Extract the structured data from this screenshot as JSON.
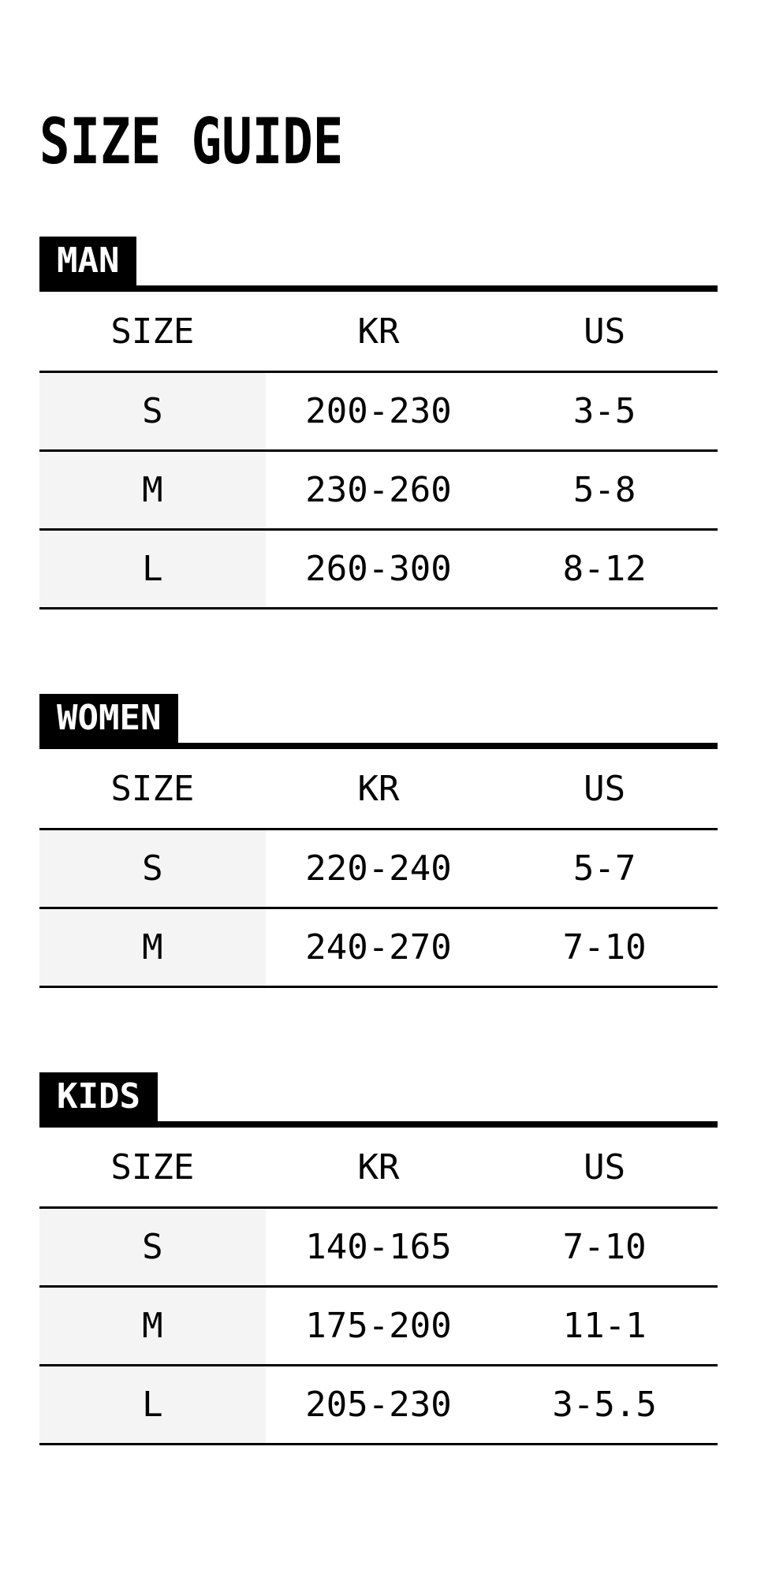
{
  "page": {
    "title": "SIZE GUIDE"
  },
  "colors": {
    "background": "#ffffff",
    "text": "#000000",
    "tab_background": "#000000",
    "tab_text": "#ffffff",
    "size_column_shade": "#f4f4f4",
    "line": "#000000"
  },
  "sections": [
    {
      "label": "MAN",
      "columns": [
        "SIZE",
        "KR",
        "US"
      ],
      "rows": [
        [
          "S",
          "200-230",
          "3-5"
        ],
        [
          "M",
          "230-260",
          "5-8"
        ],
        [
          "L",
          "260-300",
          "8-12"
        ]
      ]
    },
    {
      "label": "WOMEN",
      "columns": [
        "SIZE",
        "KR",
        "US"
      ],
      "rows": [
        [
          "S",
          "220-240",
          "5-7"
        ],
        [
          "M",
          "240-270",
          "7-10"
        ]
      ]
    },
    {
      "label": "KIDS",
      "columns": [
        "SIZE",
        "KR",
        "US"
      ],
      "rows": [
        [
          "S",
          "140-165",
          "7-10"
        ],
        [
          "M",
          "175-200",
          "11-1"
        ],
        [
          "L",
          "205-230",
          "3-5.5"
        ]
      ]
    }
  ]
}
